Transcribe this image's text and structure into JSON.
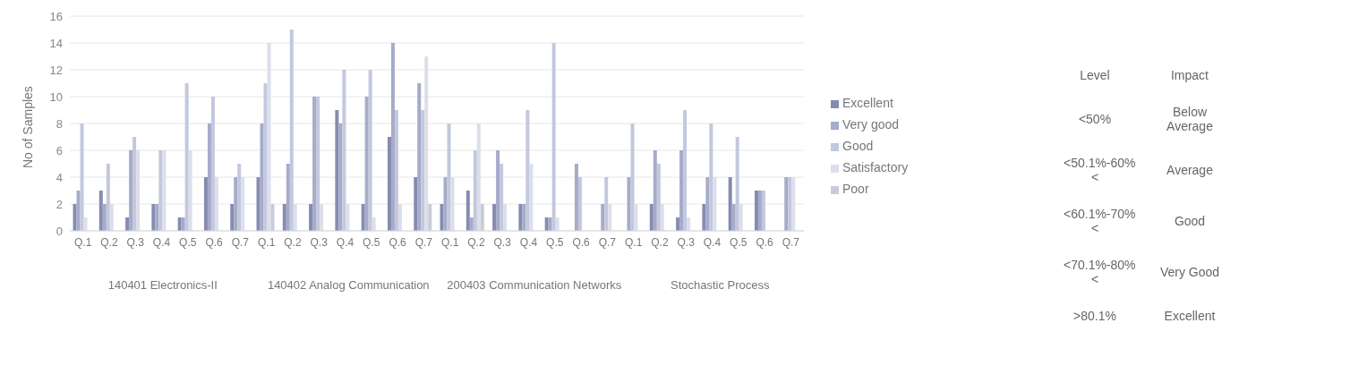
{
  "chart_data": [
    {
      "type": "bar",
      "ylabel": "No of Samples",
      "categories": [
        "Q.1",
        "Q.2",
        "Q.3",
        "Q.4",
        "Q.5",
        "Q.6",
        "Q.7",
        "Q.1",
        "Q.2",
        "Q.3",
        "Q.4",
        "Q.5",
        "Q.6",
        "Q.7",
        "Q.1",
        "Q.2",
        "Q.3",
        "Q.4",
        "Q.5",
        "Q.6",
        "Q.7",
        "Q.1",
        "Q.2",
        "Q.3",
        "Q.4",
        "Q.5",
        "Q.6",
        "Q.7"
      ],
      "series": [
        {
          "name": "Excellent",
          "color": "#868cb0",
          "values": [
            2,
            3,
            1,
            2,
            1,
            4,
            2,
            4,
            2,
            2,
            9,
            2,
            7,
            4,
            2,
            3,
            2,
            2,
            1,
            0,
            0,
            0,
            2,
            1,
            2,
            4,
            3,
            0
          ]
        },
        {
          "name": "Very good",
          "color": "#a5abc9",
          "values": [
            3,
            2,
            6,
            2,
            1,
            8,
            4,
            8,
            5,
            10,
            8,
            10,
            14,
            11,
            4,
            1,
            6,
            2,
            1,
            5,
            2,
            4,
            6,
            6,
            4,
            2,
            3,
            4
          ]
        },
        {
          "name": "Good",
          "color": "#c3c8de",
          "values": [
            8,
            5,
            7,
            6,
            11,
            10,
            5,
            11,
            15,
            10,
            12,
            12,
            9,
            9,
            8,
            6,
            5,
            9,
            14,
            4,
            4,
            8,
            5,
            9,
            8,
            7,
            3,
            4
          ]
        },
        {
          "name": "Satisfactory",
          "color": "#dcdfeb",
          "values": [
            1,
            2,
            6,
            6,
            6,
            4,
            4,
            14,
            2,
            2,
            2,
            1,
            2,
            13,
            4,
            8,
            2,
            5,
            1,
            0,
            2,
            2,
            2,
            1,
            4,
            2,
            0,
            4
          ]
        },
        {
          "name": "Poor",
          "color": "#c9ccd8",
          "values": [
            0,
            0,
            0,
            0,
            0,
            0,
            0,
            2,
            0,
            0,
            0,
            0,
            0,
            2,
            0,
            2,
            0,
            0,
            0,
            0,
            0,
            0,
            0,
            0,
            0,
            0,
            0,
            0
          ]
        }
      ],
      "ylim": [
        0,
        16
      ],
      "yticks": [
        0,
        2,
        4,
        6,
        8,
        10,
        12,
        14,
        16
      ],
      "grid": "y",
      "legend": "right",
      "annotations": [
        "140401 Electronics-II",
        "140402  Analog Communication",
        "200403 Communication Networks",
        "Stochastic Process"
      ]
    },
    {
      "type": "other",
      "annotations": [
        "Level",
        "Impact",
        "<50%",
        "Below Average",
        "<50.1%-60%<",
        "Average",
        "<60.1%-70%<",
        "Good",
        "<70.1%-80%<",
        "Very Good",
        ">80.1%",
        "Excellent"
      ]
    }
  ]
}
